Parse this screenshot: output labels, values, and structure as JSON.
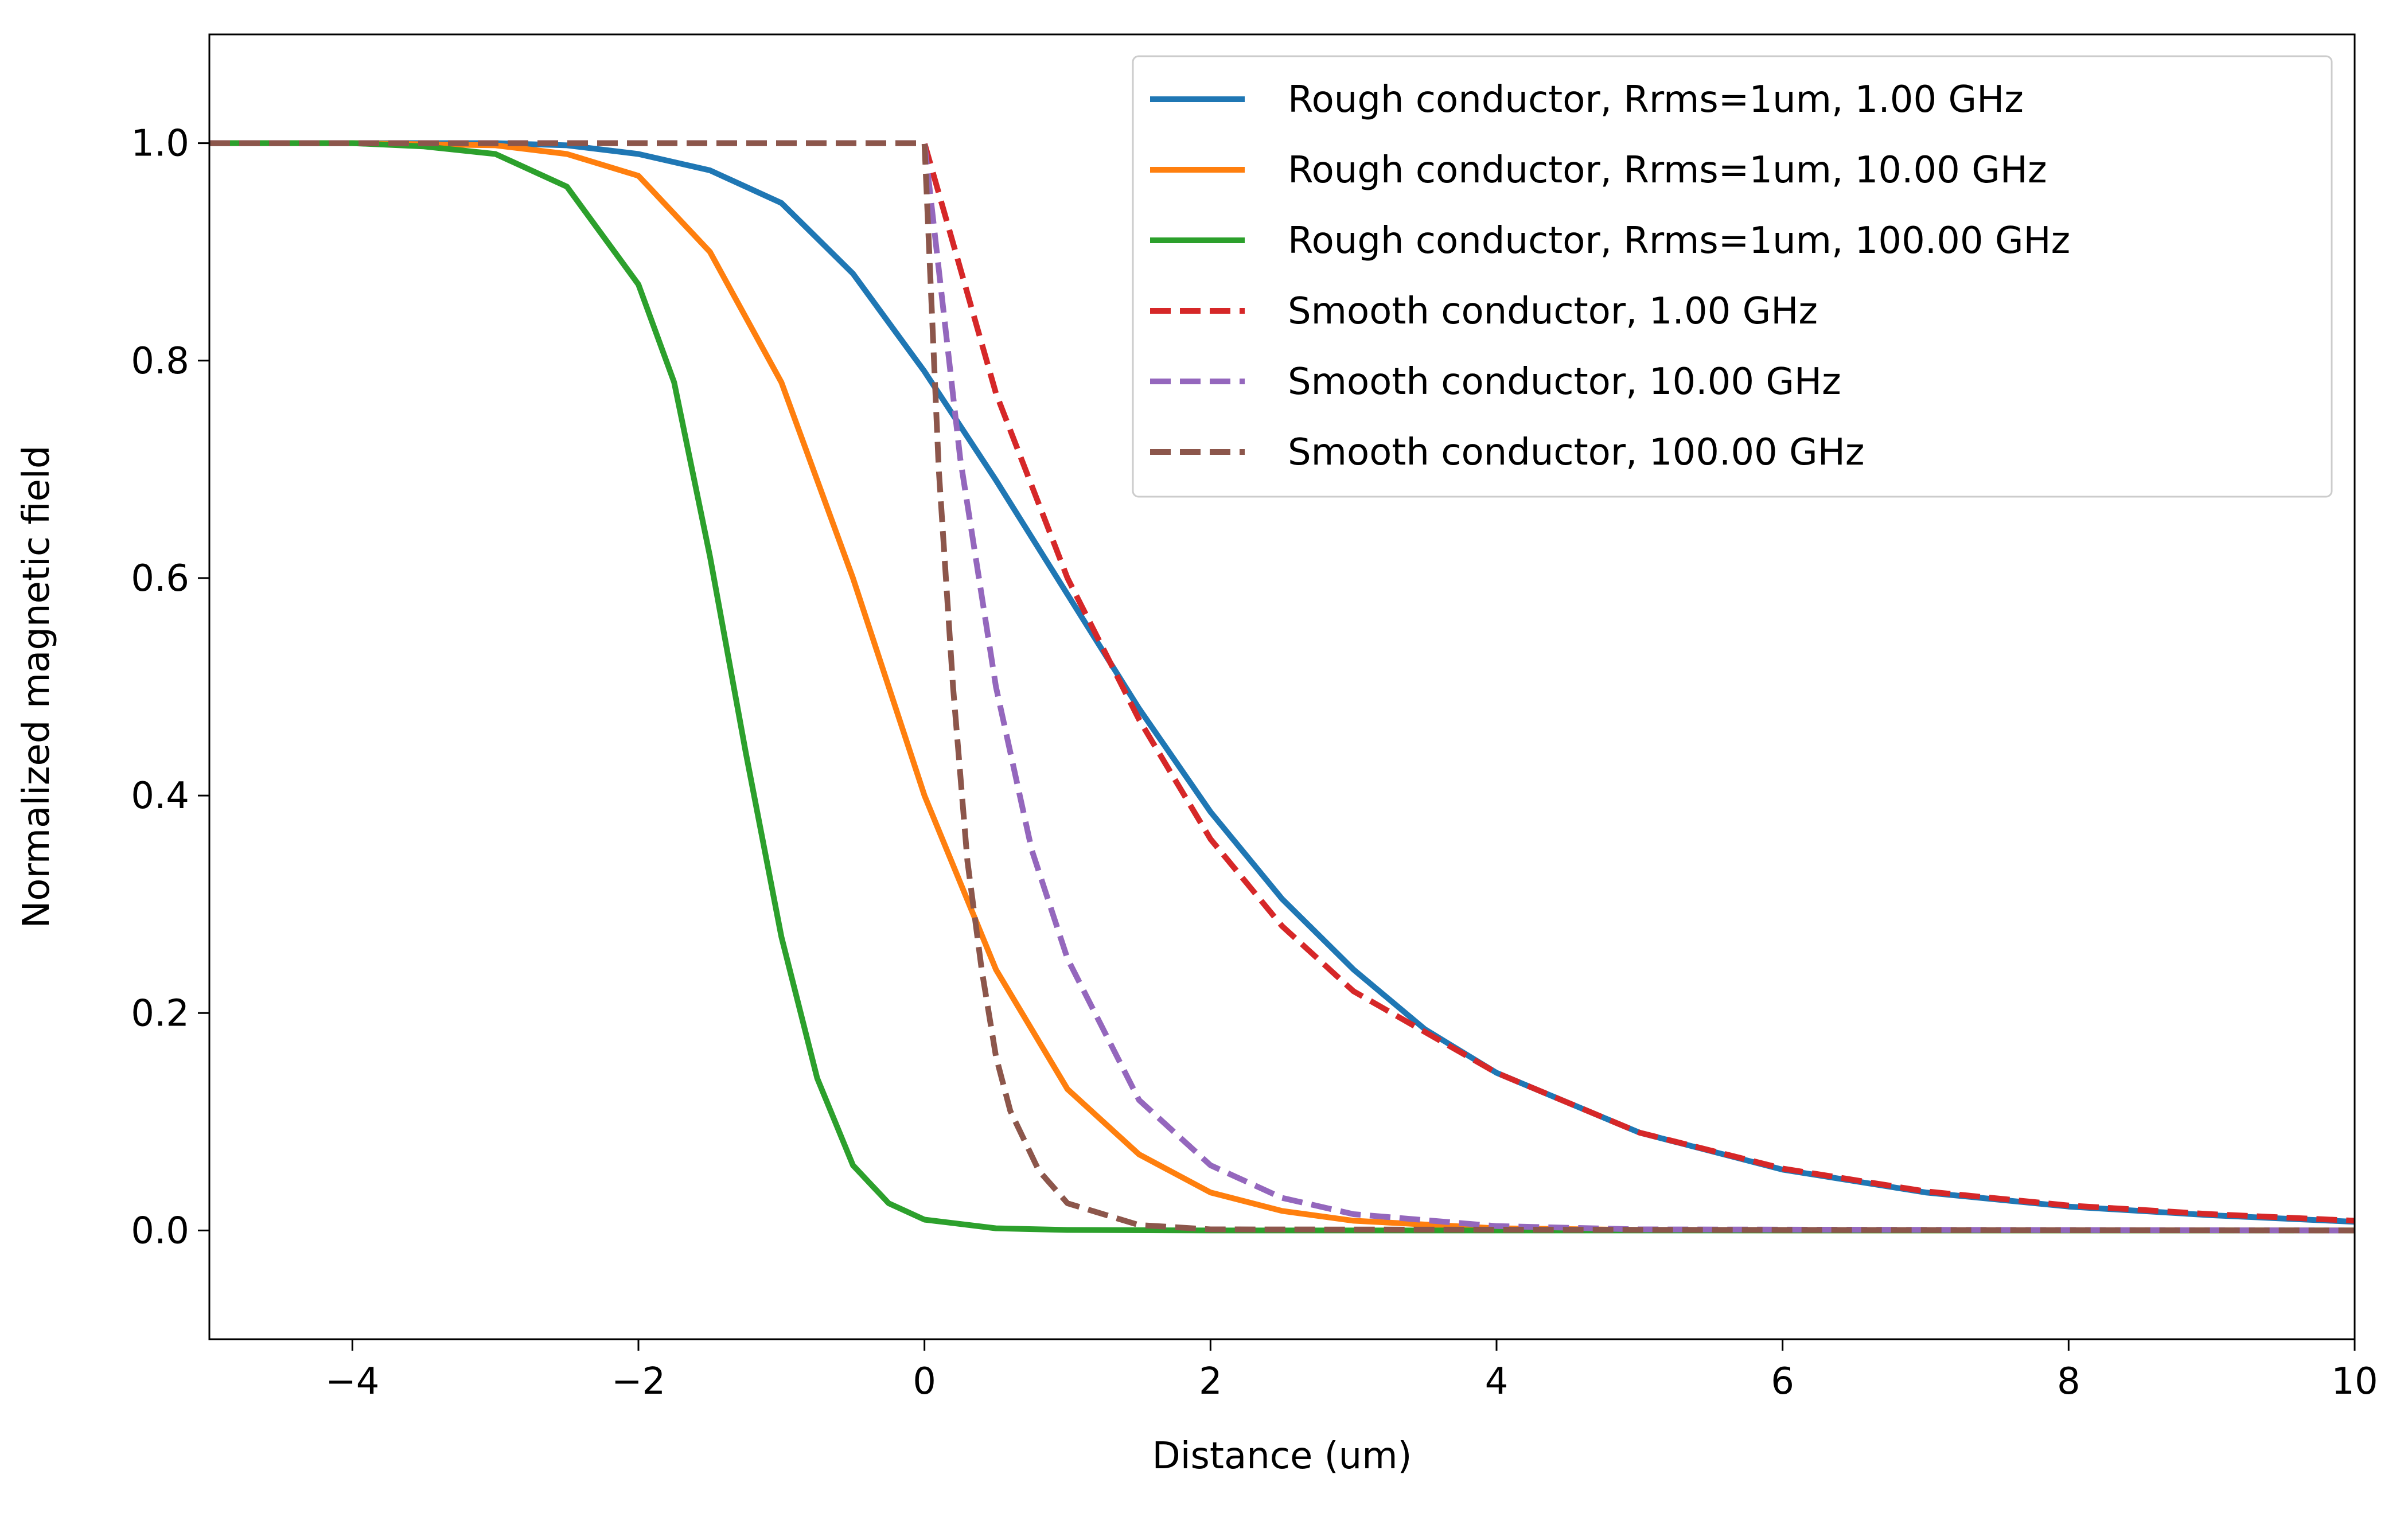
{
  "chart_data": {
    "type": "line",
    "title": "",
    "xlabel": "Distance (um)",
    "ylabel": "Normalized magnetic field",
    "xlim": [
      -5,
      10
    ],
    "ylim": [
      -0.1,
      1.1
    ],
    "xticks": [
      -4,
      -2,
      0,
      2,
      4,
      6,
      8,
      10
    ],
    "xtick_labels": [
      "−4",
      "−2",
      "0",
      "2",
      "4",
      "6",
      "8",
      "10"
    ],
    "yticks": [
      0.0,
      0.2,
      0.4,
      0.6,
      0.8,
      1.0
    ],
    "ytick_labels": [
      "0.0",
      "0.2",
      "0.4",
      "0.6",
      "0.8",
      "1.0"
    ],
    "grid": false,
    "legend_position": "upper-right",
    "series": [
      {
        "name": "Rough conductor, Rrms=1um, 1.00 GHz",
        "color": "#1f77b4",
        "style": "solid",
        "x": [
          -5,
          -4,
          -3,
          -2.5,
          -2,
          -1.5,
          -1,
          -0.5,
          0,
          0.5,
          1,
          1.5,
          2,
          2.5,
          3,
          3.5,
          4,
          5,
          6,
          7,
          8,
          9,
          10
        ],
        "y": [
          1.0,
          1.0,
          1.0,
          0.998,
          0.99,
          0.975,
          0.945,
          0.88,
          0.79,
          0.69,
          0.585,
          0.48,
          0.385,
          0.305,
          0.24,
          0.185,
          0.145,
          0.09,
          0.056,
          0.035,
          0.022,
          0.014,
          0.008
        ]
      },
      {
        "name": "Rough conductor, Rrms=1um, 10.00 GHz",
        "color": "#ff7f0e",
        "style": "solid",
        "x": [
          -5,
          -4,
          -3,
          -2.5,
          -2,
          -1.5,
          -1,
          -0.5,
          0,
          0.5,
          1,
          1.5,
          2,
          2.5,
          3,
          4,
          5,
          6,
          8,
          10
        ],
        "y": [
          1.0,
          1.0,
          0.998,
          0.99,
          0.97,
          0.9,
          0.78,
          0.6,
          0.4,
          0.24,
          0.13,
          0.07,
          0.035,
          0.018,
          0.009,
          0.002,
          0.0005,
          0.0,
          0.0,
          0.0
        ]
      },
      {
        "name": "Rough conductor, Rrms=1um, 100.00 GHz",
        "color": "#2ca02c",
        "style": "solid",
        "x": [
          -5,
          -4,
          -3.5,
          -3,
          -2.5,
          -2,
          -1.75,
          -1.5,
          -1.25,
          -1,
          -0.75,
          -0.5,
          -0.25,
          0,
          0.5,
          1,
          2,
          4,
          10
        ],
        "y": [
          1.0,
          1.0,
          0.997,
          0.99,
          0.96,
          0.87,
          0.78,
          0.62,
          0.44,
          0.27,
          0.14,
          0.06,
          0.025,
          0.01,
          0.002,
          0.0005,
          0.0,
          0.0,
          0.0
        ]
      },
      {
        "name": "Smooth conductor, 1.00 GHz",
        "color": "#d62728",
        "style": "dashed",
        "x": [
          -5,
          -2,
          0,
          0.5,
          1,
          1.5,
          2,
          2.5,
          3,
          4,
          5,
          6,
          7,
          8,
          9,
          10
        ],
        "y": [
          1.0,
          1.0,
          1.0,
          0.77,
          0.6,
          0.47,
          0.36,
          0.28,
          0.22,
          0.145,
          0.09,
          0.057,
          0.036,
          0.023,
          0.015,
          0.009
        ]
      },
      {
        "name": "Smooth conductor, 10.00 GHz",
        "color": "#9467bd",
        "style": "dashed",
        "x": [
          -5,
          -2,
          0,
          0.25,
          0.5,
          0.75,
          1,
          1.5,
          2,
          2.5,
          3,
          4,
          5,
          10
        ],
        "y": [
          1.0,
          1.0,
          1.0,
          0.71,
          0.5,
          0.35,
          0.25,
          0.12,
          0.06,
          0.03,
          0.015,
          0.004,
          0.001,
          0.0
        ]
      },
      {
        "name": "Smooth conductor, 100.00 GHz",
        "color": "#8c564b",
        "style": "dashed",
        "x": [
          -5,
          -2,
          0,
          0.1,
          0.2,
          0.3,
          0.4,
          0.5,
          0.6,
          0.8,
          1.0,
          1.5,
          2,
          10
        ],
        "y": [
          1.0,
          1.0,
          1.0,
          0.7,
          0.5,
          0.34,
          0.24,
          0.16,
          0.11,
          0.055,
          0.025,
          0.005,
          0.001,
          0.0
        ]
      }
    ]
  }
}
